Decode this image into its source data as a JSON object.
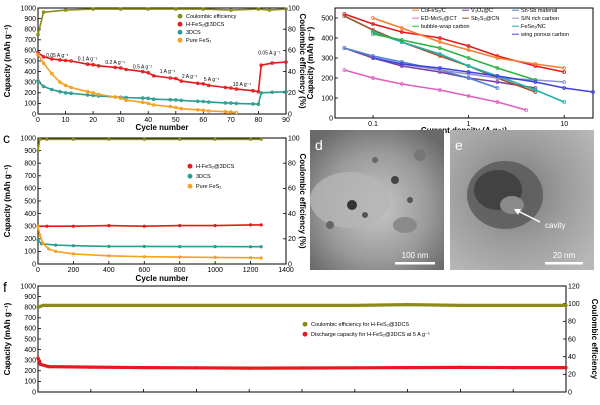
{
  "panels": [
    {
      "id": "a",
      "type": "line",
      "letter": "",
      "xlabel": "Cycle number",
      "ylabel": "Capacity (mAh g⁻¹)",
      "y2label": "Coulombic efficiency (%)",
      "xlim": [
        0,
        90
      ],
      "ylim": [
        0,
        1000
      ],
      "y2lim": [
        0,
        100
      ],
      "xticks": [
        "0",
        "10",
        "20",
        "30",
        "40",
        "50",
        "60",
        "70",
        "80",
        "90"
      ],
      "yticks": [
        "0",
        "100",
        "200",
        "300",
        "400",
        "500",
        "600",
        "700",
        "800",
        "900",
        "1000"
      ],
      "y2ticks": [
        "0",
        "20",
        "40",
        "60",
        "80",
        "100"
      ],
      "legend": [
        "Coulombic efficiency",
        "H-FeS₂@3DCS",
        "3DCS",
        "Pure FeS₂"
      ],
      "rate_labels": [
        "0.05 A g⁻¹",
        "0.1 A g⁻¹",
        "0.2 A g⁻¹",
        "0.5 A g⁻¹",
        "1 A g⁻¹",
        "2 A g⁻¹",
        "5 A g⁻¹",
        "10 A g⁻¹",
        "0.05 A g⁻¹"
      ],
      "series": [
        {
          "name": "Coulombic efficiency",
          "color": "#8b8b1a",
          "axis": "right",
          "x": [
            0,
            2,
            10,
            20,
            30,
            40,
            50,
            60,
            70,
            80,
            84,
            90
          ],
          "y": [
            75,
            96,
            98,
            99,
            99,
            99,
            99,
            99,
            98,
            99,
            98,
            99
          ]
        },
        {
          "name": "H-FeS₂@3DCS",
          "color": "#e41a1c",
          "axis": "left",
          "x": [
            0,
            2,
            5,
            8,
            10,
            12,
            18,
            20,
            22,
            28,
            30,
            32,
            38,
            40,
            42,
            48,
            50,
            52,
            58,
            60,
            62,
            68,
            70,
            72,
            78,
            80,
            81,
            85,
            90
          ],
          "y": [
            580,
            540,
            520,
            510,
            505,
            500,
            470,
            465,
            455,
            440,
            435,
            420,
            400,
            390,
            360,
            340,
            335,
            310,
            290,
            285,
            270,
            250,
            245,
            235,
            220,
            210,
            460,
            480,
            490
          ]
        },
        {
          "name": "3DCS",
          "color": "#2a9d8f",
          "axis": "left",
          "x": [
            0,
            2,
            5,
            8,
            10,
            12,
            18,
            20,
            22,
            28,
            30,
            32,
            38,
            40,
            42,
            48,
            50,
            52,
            58,
            60,
            62,
            68,
            70,
            72,
            78,
            80,
            81,
            85,
            90
          ],
          "y": [
            310,
            260,
            230,
            210,
            200,
            195,
            180,
            175,
            170,
            160,
            158,
            155,
            150,
            148,
            140,
            135,
            133,
            128,
            120,
            118,
            112,
            105,
            103,
            100,
            95,
            92,
            200,
            205,
            210
          ]
        },
        {
          "name": "Pure FeS₂",
          "color": "#f4a020",
          "axis": "left",
          "x": [
            0,
            2,
            5,
            8,
            10,
            12,
            18,
            20,
            22,
            28,
            30,
            32,
            38,
            40,
            42,
            48,
            50,
            52,
            58,
            60,
            62,
            68,
            70,
            72
          ],
          "y": [
            560,
            480,
            380,
            300,
            270,
            250,
            210,
            200,
            185,
            160,
            150,
            130,
            110,
            100,
            85,
            70,
            60,
            50,
            40,
            35,
            28,
            22,
            18,
            15
          ]
        }
      ]
    },
    {
      "id": "b",
      "type": "line",
      "xscale": "log",
      "xlabel": "Current density (A g⁻¹)",
      "ylabel": "Capacity (mAh g⁻¹)",
      "xlim": [
        0.04,
        20
      ],
      "ylim": [
        0,
        550
      ],
      "xticks": [
        "0.1",
        "1",
        "10"
      ],
      "yticks": [
        "0",
        "100",
        "200",
        "300",
        "400",
        "500"
      ],
      "legend_partial": [
        "CoFeS₂/C",
        "ED-MoS₂@CT",
        "V₃O₄@C",
        "Sb₂S₃@CN",
        "Sn-Sb material",
        "S/N rich carbon",
        "FeSe₂/NC",
        "bubble-wrap carbon",
        "wing porous carbon"
      ],
      "series": [
        {
          "name": "H-FeS₂@3DCS",
          "color": "#e41a1c",
          "x": [
            0.05,
            0.1,
            0.2,
            0.5,
            1,
            2,
            5,
            10
          ],
          "y": [
            520,
            470,
            430,
            400,
            360,
            310,
            260,
            230
          ]
        },
        {
          "name": "CoFeS₂/C",
          "color": "#f08030",
          "x": [
            0.1,
            0.2,
            0.5,
            1,
            2,
            5,
            10
          ],
          "y": [
            500,
            450,
            380,
            340,
            300,
            270,
            250
          ]
        },
        {
          "name": "ED-MoS₂@CT",
          "color": "#e060c0",
          "x": [
            0.05,
            0.1,
            0.2,
            0.5,
            1,
            2,
            4
          ],
          "y": [
            240,
            200,
            170,
            140,
            110,
            80,
            40
          ]
        },
        {
          "name": "V₃O₄@C",
          "color": "#7a3fa0",
          "x": [
            0.05,
            0.1,
            0.2,
            0.5,
            1,
            2,
            5
          ],
          "y": [
            350,
            300,
            260,
            230,
            200,
            180,
            150
          ]
        },
        {
          "name": "Sb₂S₃@CN",
          "color": "#a0522d",
          "x": [
            0.05,
            0.1,
            0.2,
            0.5,
            1,
            2,
            5
          ],
          "y": [
            510,
            440,
            380,
            310,
            260,
            200,
            130
          ]
        },
        {
          "name": "Sn-Sb material",
          "color": "#5080d0",
          "x": [
            0.05,
            0.1,
            0.2,
            0.5,
            1,
            2
          ],
          "y": [
            350,
            310,
            280,
            240,
            200,
            150
          ]
        },
        {
          "name": "S/N rich carbon",
          "color": "#9090d0",
          "x": [
            0.1,
            0.2,
            0.5,
            1,
            2,
            5,
            10
          ],
          "y": [
            300,
            270,
            240,
            220,
            200,
            190,
            180
          ]
        },
        {
          "name": "FeSe₂/NC",
          "color": "#20b0b0",
          "x": [
            0.1,
            0.2,
            0.5,
            1,
            2,
            5,
            10
          ],
          "y": [
            430,
            380,
            320,
            260,
            210,
            140,
            80
          ]
        },
        {
          "name": "bubble-wrap carbon",
          "color": "#30b040",
          "x": [
            0.1,
            0.2,
            0.5,
            1,
            2,
            5
          ],
          "y": [
            420,
            390,
            350,
            300,
            250,
            190
          ]
        },
        {
          "name": "wing porous carbon",
          "color": "#4040e0",
          "x": [
            0.1,
            0.2,
            0.5,
            1,
            2,
            5,
            10,
            20
          ],
          "y": [
            300,
            270,
            250,
            230,
            210,
            180,
            150,
            130
          ]
        }
      ]
    },
    {
      "id": "c",
      "type": "line",
      "letter": "c",
      "xlabel": "Cycle number",
      "ylabel": "Capacity (mAh g⁻¹)",
      "y2label": "Coulombic efficiency (%)",
      "xlim": [
        0,
        1400
      ],
      "ylim": [
        0,
        1000
      ],
      "y2lim": [
        0,
        100
      ],
      "xticks": [
        "0",
        "200",
        "400",
        "600",
        "800",
        "1000",
        "1200",
        "1400"
      ],
      "yticks": [
        "0",
        "100",
        "200",
        "300",
        "400",
        "500",
        "600",
        "700",
        "800",
        "900",
        "1000"
      ],
      "y2ticks": [
        "0",
        "20",
        "40",
        "60",
        "80",
        "100"
      ],
      "legend": [
        "H-FeS₂@3DCS",
        "3DCS",
        "Pure FeS₂"
      ],
      "series": [
        {
          "name": "Coulombic efficiency",
          "color": "#8b8b1a",
          "axis": "right",
          "x": [
            0,
            10,
            50,
            200,
            400,
            600,
            800,
            1000,
            1200,
            1260
          ],
          "y": [
            90,
            99,
            99,
            99,
            99,
            99,
            99,
            99,
            99,
            99
          ]
        },
        {
          "name": "H-FeS₂@3DCS",
          "color": "#e41a1c",
          "axis": "left",
          "x": [
            0,
            50,
            200,
            400,
            600,
            800,
            1000,
            1200,
            1260
          ],
          "y": [
            300,
            300,
            300,
            305,
            300,
            305,
            305,
            310,
            310
          ]
        },
        {
          "name": "3DCS",
          "color": "#2a9d8f",
          "axis": "left",
          "x": [
            0,
            20,
            100,
            200,
            400,
            600,
            800,
            1000,
            1200,
            1260
          ],
          "y": [
            190,
            160,
            150,
            145,
            140,
            140,
            138,
            138,
            137,
            137
          ]
        },
        {
          "name": "Pure FeS₂",
          "color": "#f4a020",
          "axis": "left",
          "x": [
            0,
            10,
            30,
            60,
            100,
            200,
            400,
            600,
            800,
            1000,
            1200,
            1260
          ],
          "y": [
            300,
            230,
            160,
            120,
            100,
            80,
            65,
            58,
            55,
            52,
            50,
            48
          ]
        }
      ]
    },
    {
      "id": "f",
      "type": "line",
      "letter": "f",
      "ylabel": "Capacity (mAh g⁻¹)",
      "y2label": "Coulombic efficiency",
      "xlim": [
        0,
        1000
      ],
      "ylim": [
        0,
        1000
      ],
      "y2lim": [
        0,
        120
      ],
      "yticks": [
        "0",
        "100",
        "200",
        "300",
        "400",
        "500",
        "600",
        "700",
        "800",
        "900",
        "1000"
      ],
      "y2ticks": [
        "0",
        "20",
        "40",
        "60",
        "80",
        "100",
        "120"
      ],
      "legend": [
        "Coulombic efficiency for H-FeS₂@3DCS",
        "Discharge capacity for H-FeS₂@3DCS at 5 A g⁻¹"
      ],
      "series": [
        {
          "name": "Coulombic efficiency for H-FeS₂@3DCS",
          "color": "#8b8b1a",
          "axis": "right",
          "x": [
            0,
            10,
            100,
            200,
            300,
            400,
            500,
            600,
            700,
            800,
            900,
            1000
          ],
          "y": [
            96,
            98,
            98,
            98,
            98,
            98,
            98,
            98,
            99,
            98,
            98,
            98
          ]
        },
        {
          "name": "Discharge capacity for H-FeS₂@3DCS at 5 A g⁻¹",
          "color": "#e41a1c",
          "axis": "left",
          "x": [
            0,
            5,
            20,
            100,
            200,
            300,
            400,
            500,
            600,
            700,
            800,
            900,
            1000
          ],
          "y": [
            320,
            260,
            240,
            235,
            230,
            228,
            225,
            226,
            228,
            230,
            232,
            230,
            230
          ]
        }
      ]
    }
  ],
  "images": [
    {
      "id": "d",
      "letter": "d",
      "scale_label": "100 nm"
    },
    {
      "id": "e",
      "letter": "e",
      "scale_label": "20 nm",
      "annotation": "cavity"
    }
  ]
}
